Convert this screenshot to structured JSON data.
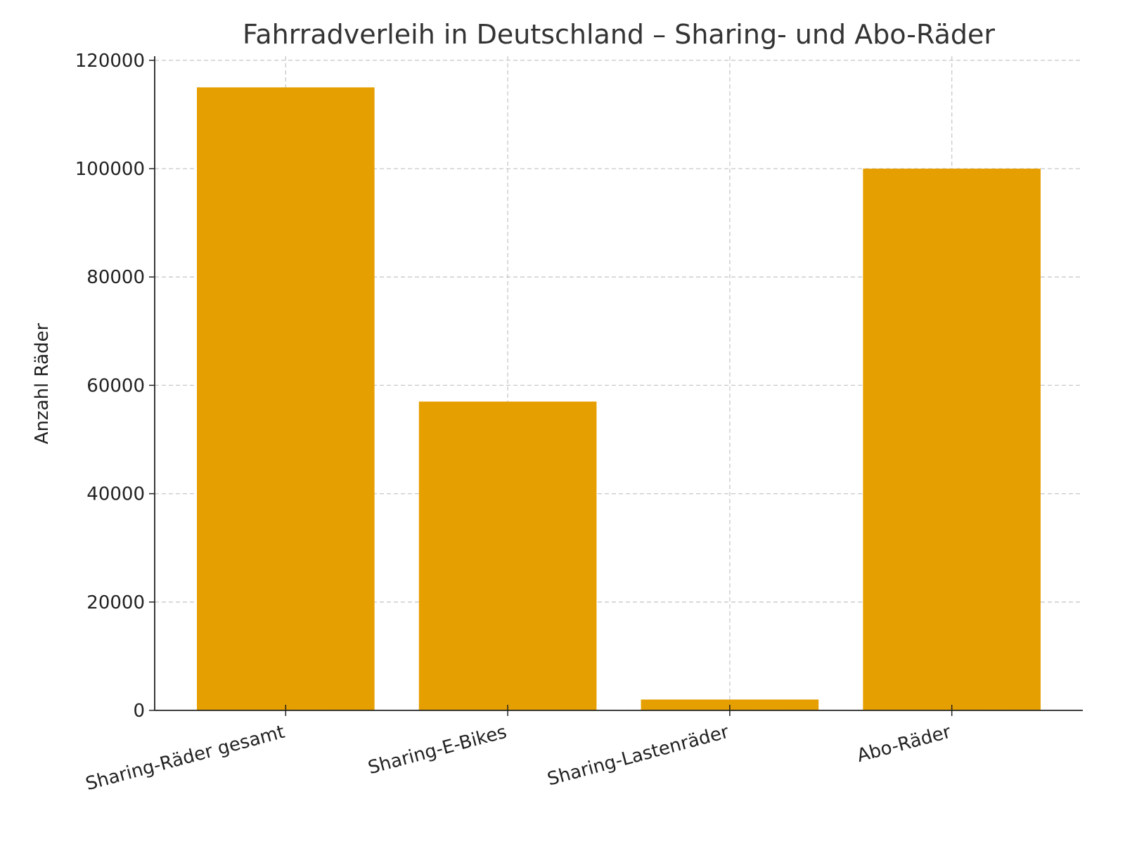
{
  "chart_data": {
    "type": "bar",
    "title": "Fahrradverleih in Deutschland – Sharing- und Abo-Räder",
    "xlabel": "",
    "ylabel": "Anzahl Räder",
    "categories": [
      "Sharing-Räder gesamt",
      "Sharing-E-Bikes",
      "Sharing-Lastenräder",
      "Abo-Räder"
    ],
    "values": [
      115000,
      57000,
      2000,
      100000
    ],
    "ylim": [
      0,
      120750
    ],
    "yticks": [
      0,
      20000,
      40000,
      60000,
      80000,
      100000,
      120000
    ],
    "grid": true,
    "bar_color": "#E69F00"
  }
}
